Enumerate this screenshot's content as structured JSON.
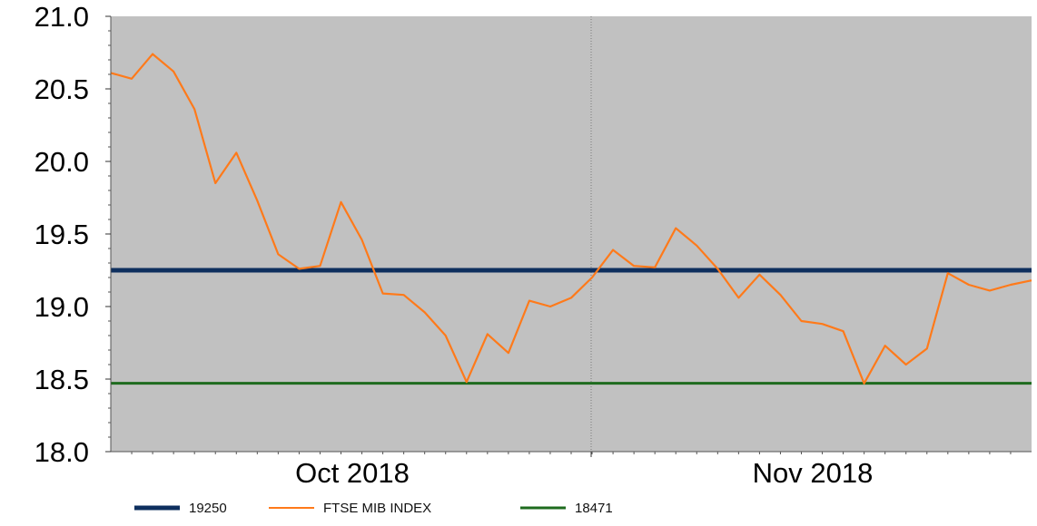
{
  "chart_data": {
    "type": "line",
    "y_ticks": [
      "18.0",
      "18.5",
      "19.0",
      "19.5",
      "20.0",
      "20.5",
      "21.0"
    ],
    "ylim": [
      18.0,
      21.0
    ],
    "x_labels": [
      "Oct 2018",
      "Nov 2018"
    ],
    "grid": "vertical dotted separators at month boundaries",
    "legend_position": "bottom",
    "reference_lines": [
      {
        "name": "19250",
        "value": 19.25,
        "color": "#0e2f5e"
      },
      {
        "name": "18471",
        "value": 18.471,
        "color": "#1e6b1e"
      }
    ],
    "series": [
      {
        "name": "FTSE MIB INDEX",
        "color": "#ff7a1a",
        "values": [
          20.61,
          20.57,
          20.74,
          20.62,
          20.36,
          19.85,
          20.06,
          19.73,
          19.36,
          19.26,
          19.28,
          19.72,
          19.46,
          19.09,
          19.08,
          18.96,
          18.8,
          18.48,
          18.81,
          18.68,
          19.04,
          19.0,
          19.06,
          19.2,
          19.39,
          19.28,
          19.27,
          19.54,
          19.42,
          19.26,
          19.06,
          19.22,
          19.08,
          18.9,
          18.88,
          18.83,
          18.47,
          18.73,
          18.6,
          18.71,
          19.23,
          19.15,
          19.11,
          19.15,
          19.18
        ]
      }
    ]
  }
}
